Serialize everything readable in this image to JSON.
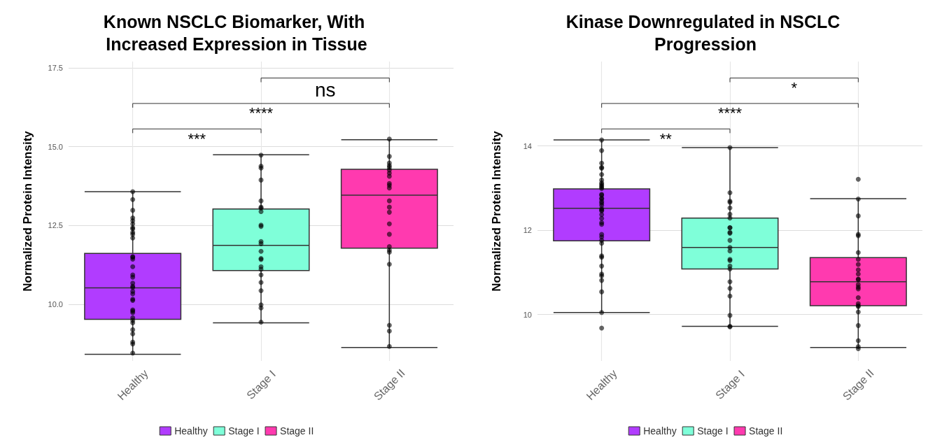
{
  "chart_data": [
    {
      "type": "box",
      "title": "Known NSCLC Biomarker, With Increased Expression in Tissue",
      "ylabel": "Normalized Protein Intensity",
      "categories": [
        "Healthy",
        "Stage I",
        "Stage II"
      ],
      "series": [
        {
          "name": "Healthy",
          "color": "#b13cff",
          "boxes": [
            {
              "low": 8.41,
              "q1": 9.52,
              "median": 10.52,
              "q3": 11.61,
              "high": 13.57
            },
            null,
            null
          ]
        },
        {
          "name": "Stage I",
          "color": "#7fffd9",
          "boxes": [
            null,
            {
              "low": 9.41,
              "q1": 11.07,
              "median": 11.87,
              "q3": 13.02,
              "high": 14.74
            },
            null
          ]
        },
        {
          "name": "Stage II",
          "color": "#ff3aaf",
          "boxes": [
            null,
            null,
            {
              "low": 8.63,
              "q1": 11.78,
              "median": 13.46,
              "q3": 14.28,
              "high": 15.22
            }
          ]
        },
        {
          "type": "scatter",
          "color": "#000000",
          "x": [
            "Healthy",
            "Healthy",
            "Healthy",
            "Healthy",
            "Healthy",
            "Healthy",
            "Healthy",
            "Healthy",
            "Healthy",
            "Healthy",
            "Healthy",
            "Healthy",
            "Healthy",
            "Healthy",
            "Healthy",
            "Healthy",
            "Healthy",
            "Healthy",
            "Healthy",
            "Healthy",
            "Healthy",
            "Healthy",
            "Healthy",
            "Healthy",
            "Healthy",
            "Healthy",
            "Healthy",
            "Healthy",
            "Healthy",
            "Healthy",
            "Healthy",
            "Healthy",
            "Healthy",
            "Healthy",
            "Healthy",
            "Stage I",
            "Stage I",
            "Stage I",
            "Stage I",
            "Stage I",
            "Stage I",
            "Stage I",
            "Stage I",
            "Stage I",
            "Stage I",
            "Stage I",
            "Stage I",
            "Stage I",
            "Stage I",
            "Stage I",
            "Stage I",
            "Stage I",
            "Stage I",
            "Stage I",
            "Stage I",
            "Stage I",
            "Stage I",
            "Stage I",
            "Stage II",
            "Stage II",
            "Stage II",
            "Stage II",
            "Stage II",
            "Stage II",
            "Stage II",
            "Stage II",
            "Stage II",
            "Stage II",
            "Stage II",
            "Stage II",
            "Stage II",
            "Stage II",
            "Stage II",
            "Stage II",
            "Stage II",
            "Stage II",
            "Stage II",
            "Stage II",
            "Stage II",
            "Stage II",
            "Stage II"
          ],
          "values": [
            13.57,
            13.32,
            12.98,
            12.74,
            12.65,
            12.55,
            12.43,
            12.39,
            12.28,
            12.22,
            12.1,
            11.51,
            11.49,
            11.43,
            11.19,
            10.93,
            10.86,
            10.67,
            10.57,
            10.53,
            10.41,
            10.33,
            10.16,
            10.12,
            9.82,
            9.78,
            9.73,
            9.57,
            9.49,
            9.41,
            9.19,
            9.06,
            8.8,
            8.74,
            8.45,
            14.73,
            14.38,
            14.32,
            13.94,
            13.28,
            13.08,
            13.05,
            12.94,
            12.51,
            12.47,
            11.99,
            11.92,
            11.68,
            11.45,
            11.42,
            11.19,
            11.11,
            10.93,
            10.69,
            10.43,
            9.98,
            9.88,
            9.43,
            15.24,
            14.69,
            14.48,
            14.4,
            14.34,
            14.26,
            14.16,
            14.06,
            13.83,
            13.77,
            13.69,
            13.28,
            13.08,
            12.92,
            12.55,
            12.22,
            11.83,
            11.72,
            11.65,
            11.27,
            9.33,
            9.15,
            8.66
          ]
        }
      ],
      "ylim": [
        8.2,
        17.7
      ],
      "yticks": [
        {
          "value": 10,
          "label": "10.0"
        },
        {
          "value": 12.5,
          "label": "12.5"
        },
        {
          "value": 15,
          "label": "15.0"
        },
        {
          "value": 17.5,
          "label": "17.5"
        }
      ],
      "annotations": [
        "***",
        "****",
        "ns"
      ],
      "grid": true,
      "legend": "bottom"
    },
    {
      "type": "box",
      "title": "Kinase Downregulated in NSCLC Progression",
      "ylabel": "Normalized Protein Intensity",
      "categories": [
        "Healthy",
        "Stage I",
        "Stage II"
      ],
      "series": [
        {
          "name": "Healthy",
          "color": "#b13cff",
          "boxes": [
            {
              "low": 10.05,
              "q1": 11.75,
              "median": 12.52,
              "q3": 12.98,
              "high": 14.14
            },
            null,
            null
          ]
        },
        {
          "name": "Stage I",
          "color": "#7fffd9",
          "boxes": [
            null,
            {
              "low": 9.72,
              "q1": 11.08,
              "median": 11.59,
              "q3": 12.29,
              "high": 13.96
            },
            null
          ]
        },
        {
          "name": "Stage II",
          "color": "#ff3aaf",
          "boxes": [
            null,
            null,
            {
              "low": 9.22,
              "q1": 10.21,
              "median": 10.78,
              "q3": 11.35,
              "high": 12.75
            }
          ]
        },
        {
          "type": "scatter",
          "color": "#000000",
          "x": [
            "Healthy",
            "Healthy",
            "Healthy",
            "Healthy",
            "Healthy",
            "Healthy",
            "Healthy",
            "Healthy",
            "Healthy",
            "Healthy",
            "Healthy",
            "Healthy",
            "Healthy",
            "Healthy",
            "Healthy",
            "Healthy",
            "Healthy",
            "Healthy",
            "Healthy",
            "Healthy",
            "Healthy",
            "Healthy",
            "Healthy",
            "Healthy",
            "Healthy",
            "Healthy",
            "Healthy",
            "Healthy",
            "Healthy",
            "Healthy",
            "Healthy",
            "Healthy",
            "Healthy",
            "Healthy",
            "Healthy",
            "Healthy",
            "Healthy",
            "Healthy",
            "Healthy",
            "Stage I",
            "Stage I",
            "Stage I",
            "Stage I",
            "Stage I",
            "Stage I",
            "Stage I",
            "Stage I",
            "Stage I",
            "Stage I",
            "Stage I",
            "Stage I",
            "Stage I",
            "Stage I",
            "Stage I",
            "Stage I",
            "Stage I",
            "Stage I",
            "Stage I",
            "Stage I",
            "Stage I",
            "Stage I",
            "Stage I",
            "Stage I",
            "Stage II",
            "Stage II",
            "Stage II",
            "Stage II",
            "Stage II",
            "Stage II",
            "Stage II",
            "Stage II",
            "Stage II",
            "Stage II",
            "Stage II",
            "Stage II",
            "Stage II",
            "Stage II",
            "Stage II",
            "Stage II",
            "Stage II",
            "Stage II",
            "Stage II",
            "Stage II",
            "Stage II",
            "Stage II",
            "Stage II",
            "Stage II"
          ],
          "values": [
            14.14,
            13.89,
            13.59,
            13.49,
            13.47,
            13.32,
            13.19,
            13.12,
            13.09,
            13.05,
            13.02,
            12.99,
            12.85,
            12.83,
            12.76,
            12.74,
            12.68,
            12.64,
            12.59,
            12.51,
            12.48,
            12.46,
            12.37,
            12.28,
            12.18,
            12.14,
            11.9,
            11.84,
            11.76,
            11.69,
            11.39,
            11.36,
            11.15,
            10.96,
            10.92,
            10.81,
            10.54,
            10.05,
            9.68,
            13.96,
            12.89,
            12.69,
            12.66,
            12.53,
            12.38,
            12.29,
            12.06,
            12.06,
            11.95,
            11.93,
            11.76,
            11.59,
            11.51,
            11.31,
            11.28,
            11.15,
            11.08,
            10.78,
            10.62,
            10.44,
            9.98,
            9.72,
            9.71,
            13.21,
            12.74,
            12.34,
            11.9,
            11.87,
            11.47,
            11.31,
            11.19,
            11.06,
            10.96,
            10.84,
            10.83,
            10.71,
            10.65,
            10.61,
            10.4,
            10.26,
            10.21,
            10.19,
            10.06,
            9.74,
            9.38,
            9.24,
            9.19
          ]
        }
      ],
      "ylim": [
        8.9,
        16
      ],
      "yticks": [
        10,
        12,
        14
      ],
      "annotations": [
        "**",
        "****",
        "*"
      ],
      "grid": true,
      "legend": "bottom"
    }
  ]
}
